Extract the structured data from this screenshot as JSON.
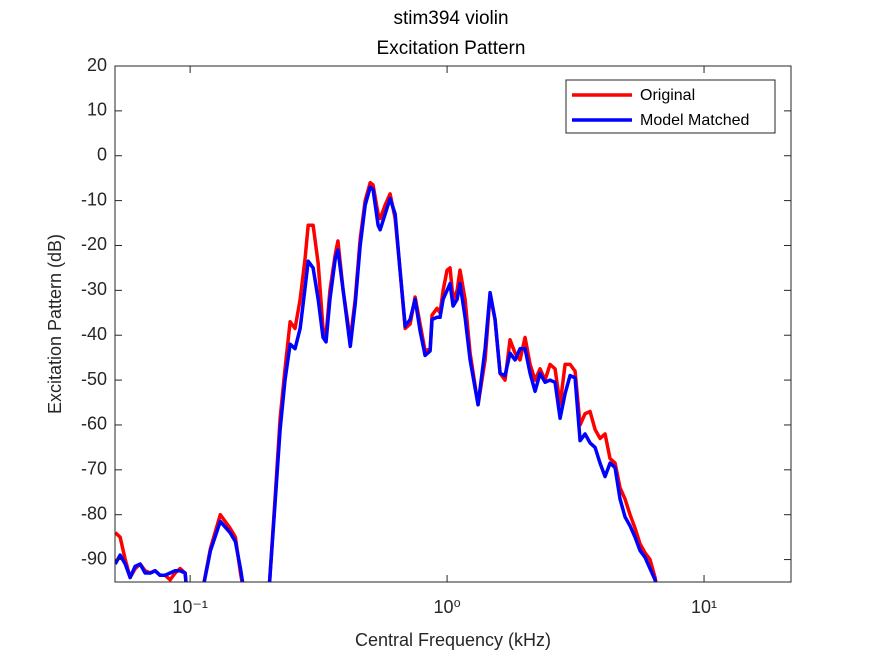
{
  "chart_data": {
    "type": "line",
    "title": "stim394 violin",
    "subtitle": "Excitation Pattern",
    "x_label": "Central Frequency (kHz)",
    "y_label": "Excitation Pattern (dB)",
    "xscale": "log",
    "xlim": [
      0.051,
      21.8
    ],
    "ylim": [
      -95,
      20
    ],
    "xticks": [
      {
        "value": 0.1,
        "label": "10⁻¹"
      },
      {
        "value": 1,
        "label": "10⁰"
      },
      {
        "value": 10,
        "label": "10¹"
      }
    ],
    "yticks": [
      20,
      10,
      0,
      -10,
      -20,
      -30,
      -40,
      -50,
      -60,
      -70,
      -80,
      -90
    ],
    "grid": false,
    "legend": "northeast",
    "x": [
      0.0511,
      0.0534,
      0.0559,
      0.0584,
      0.0611,
      0.0639,
      0.0668,
      0.0699,
      0.0731,
      0.0764,
      0.0799,
      0.0836,
      0.0874,
      0.0914,
      0.0956,
      0.0982,
      0.109,
      0.12,
      0.131,
      0.143,
      0.15,
      0.157,
      0.165,
      0.201,
      0.214,
      0.224,
      0.234,
      0.245,
      0.256,
      0.268,
      0.28,
      0.288,
      0.301,
      0.315,
      0.329,
      0.338,
      0.35,
      0.367,
      0.376,
      0.394,
      0.42,
      0.439,
      0.459,
      0.48,
      0.502,
      0.515,
      0.539,
      0.549,
      0.574,
      0.6,
      0.628,
      0.656,
      0.687,
      0.718,
      0.751,
      0.785,
      0.821,
      0.859,
      0.874,
      0.914,
      0.939,
      0.965,
      1,
      1.027,
      1.055,
      1.094,
      1.123,
      1.175,
      1.229,
      1.32,
      1.406,
      1.47,
      1.537,
      1.608,
      1.681,
      1.758,
      1.839,
      1.923,
      2.011,
      2.104,
      2.2,
      2.301,
      2.406,
      2.516,
      2.632,
      2.753,
      2.879,
      3.01,
      3.148,
      3.293,
      3.443,
      3.601,
      3.766,
      3.938,
      4.119,
      4.307,
      4.505,
      4.711,
      4.927,
      5.153,
      5.389,
      5.636,
      5.893,
      6.163,
      6.446,
      6.741
    ],
    "series": [
      {
        "name": "Original",
        "color": "#ff0000",
        "values": [
          -84,
          -85,
          -90,
          -94,
          -92,
          -91,
          -92.5,
          -93,
          -92.5,
          -93.5,
          -93.5,
          -94.5,
          -93,
          -92,
          -93,
          -100,
          -100,
          -87.5,
          -80,
          -83,
          -85,
          -93,
          -100,
          -100,
          -76.5,
          -58.5,
          -47.5,
          -37,
          -38.5,
          -32,
          -23,
          -15.5,
          -15.5,
          -24,
          -38.5,
          -40,
          -30,
          -22,
          -19,
          -30,
          -41,
          -32,
          -18.5,
          -10,
          -6,
          -6.5,
          -13,
          -14,
          -11,
          -8.5,
          -14,
          -25.5,
          -38.5,
          -37.5,
          -31.5,
          -37.5,
          -43.5,
          -43,
          -35.5,
          -34,
          -35,
          -30,
          -25.5,
          -25,
          -32,
          -30,
          -25.5,
          -32,
          -44,
          -55.5,
          -45.5,
          -31,
          -36.5,
          -48.5,
          -50,
          -41,
          -44,
          -45.5,
          -40.5,
          -46.5,
          -50,
          -47.5,
          -50,
          -46.5,
          -47.5,
          -55.5,
          -46.5,
          -46.5,
          -48,
          -60,
          -57.5,
          -57,
          -61,
          -63,
          -62,
          -67.5,
          -68.5,
          -74,
          -76.5,
          -80,
          -83,
          -86.5,
          -88.5,
          -90,
          -94,
          -100
        ]
      },
      {
        "name": "Model Matched",
        "color": "#0000ff",
        "values": [
          -91,
          -89,
          -91,
          -94,
          -91.5,
          -91,
          -93,
          -93,
          -92.5,
          -93.5,
          -93.5,
          -93,
          -92.5,
          -92.5,
          -93,
          -100,
          -100,
          -88,
          -81.5,
          -84,
          -86,
          -92,
          -100,
          -100,
          -77.5,
          -61,
          -50,
          -42,
          -43,
          -38.5,
          -29.5,
          -23.5,
          -25,
          -32,
          -40.5,
          -41.5,
          -32,
          -23,
          -21,
          -30,
          -42.5,
          -33,
          -20,
          -11,
          -7,
          -7.5,
          -15.5,
          -16.5,
          -13,
          -9.5,
          -13,
          -25.5,
          -38,
          -36.5,
          -32,
          -39,
          -44.5,
          -43.5,
          -36.5,
          -36,
          -36,
          -32,
          -30,
          -28.5,
          -33.5,
          -32,
          -28.5,
          -36,
          -45.5,
          -55.5,
          -43,
          -30.5,
          -36.5,
          -48.5,
          -49,
          -44,
          -45.5,
          -43,
          -43,
          -48.5,
          -52.5,
          -48.5,
          -50.5,
          -50,
          -50.5,
          -58.5,
          -53,
          -49,
          -49.5,
          -63.5,
          -62,
          -64,
          -65,
          -68.5,
          -71.5,
          -68.5,
          -69.5,
          -76.5,
          -80.5,
          -82.5,
          -85,
          -88,
          -89.5,
          -92,
          -94.5,
          -100
        ]
      }
    ]
  }
}
